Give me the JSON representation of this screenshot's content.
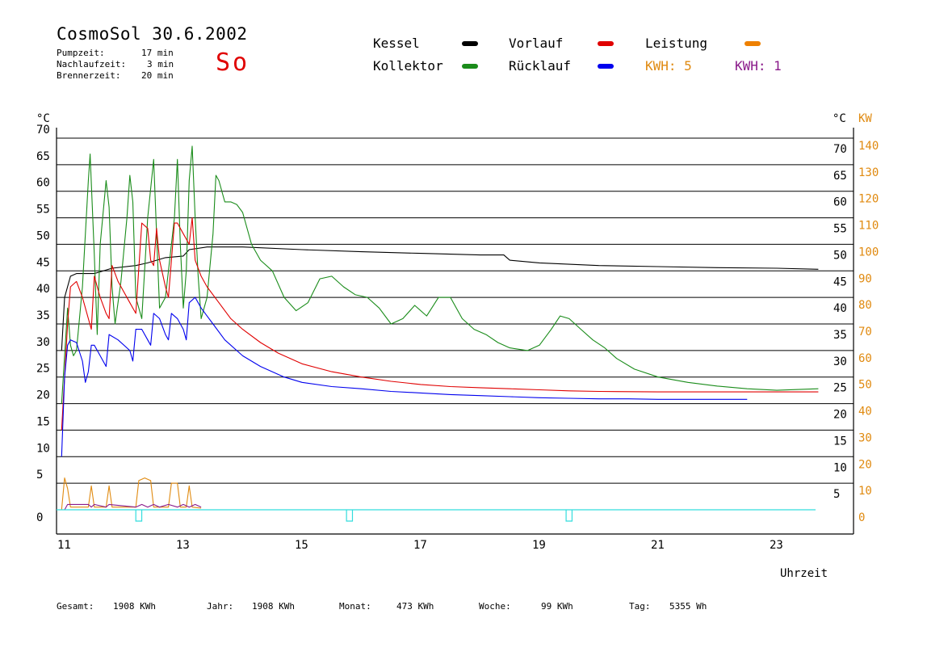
{
  "header": {
    "title": "CosmoSol 30.6.2002",
    "stats": [
      {
        "label": "Pumpzeit:",
        "value": "17 min"
      },
      {
        "label": "Nachlaufzeit:",
        "value": "3 min"
      },
      {
        "label": "Brennerzeit:",
        "value": "20 min"
      }
    ],
    "day": "So"
  },
  "legend": {
    "kessel": {
      "label": "Kessel",
      "color": "#000000"
    },
    "kollektor": {
      "label": "Kollektor",
      "color": "#1a8c1a"
    },
    "vorlauf": {
      "label": "Vorlauf",
      "color": "#e00000"
    },
    "ruecklauf": {
      "label": "Rücklauf",
      "color": "#0000ee"
    },
    "leistung": {
      "label": "Leistung",
      "color": "#ee8000"
    },
    "kwh1": {
      "label": "KWH: 5",
      "color": "#e08a10"
    },
    "kwh2": {
      "label": "KWH: 1",
      "color": "#8a1a8a"
    }
  },
  "footer": {
    "gesamt_label": "Gesamt:",
    "gesamt_value": "1908 KWh",
    "jahr_label": "Jahr:",
    "jahr_value": "1908 KWh",
    "monat_label": "Monat:",
    "monat_value": "473 KWh",
    "woche_label": "Woche:",
    "woche_value": "99 KWh",
    "tag_label": "Tag:",
    "tag_value": "5355 Wh"
  },
  "chart_data": {
    "type": "line",
    "xlabel": "Uhrzeit",
    "ylabel_left": "°C",
    "ylabel_right": "°C",
    "ylabel_right2": "KW",
    "xlim": [
      10.9,
      23.7
    ],
    "ylim": [
      0,
      70
    ],
    "x_ticks": [
      11,
      13,
      15,
      17,
      19,
      21,
      23
    ],
    "y_ticks_left": [
      0,
      5,
      10,
      15,
      20,
      25,
      30,
      35,
      40,
      45,
      50,
      55,
      60,
      65,
      70
    ],
    "y_ticks_right": [
      5,
      10,
      15,
      20,
      25,
      30,
      35,
      40,
      45,
      50,
      55,
      60,
      65,
      70
    ],
    "y_ticks_kw": [
      0,
      10,
      20,
      30,
      40,
      50,
      60,
      70,
      80,
      90,
      100,
      110,
      120,
      130,
      140
    ],
    "grid": true,
    "series": [
      {
        "name": "Kessel",
        "color": "#000000",
        "points": [
          [
            10.95,
            30
          ],
          [
            11.0,
            40
          ],
          [
            11.1,
            44
          ],
          [
            11.2,
            44.5
          ],
          [
            11.5,
            44.5
          ],
          [
            11.8,
            45.5
          ],
          [
            12.2,
            46
          ],
          [
            12.4,
            46.5
          ],
          [
            12.7,
            47.5
          ],
          [
            13.0,
            47.8
          ],
          [
            13.1,
            49
          ],
          [
            13.4,
            49.5
          ],
          [
            14.0,
            49.5
          ],
          [
            15.0,
            49
          ],
          [
            16.0,
            48.6
          ],
          [
            17.0,
            48.3
          ],
          [
            18.0,
            48
          ],
          [
            18.4,
            48
          ],
          [
            18.5,
            47
          ],
          [
            19.0,
            46.5
          ],
          [
            20.0,
            46
          ],
          [
            21.0,
            45.8
          ],
          [
            22.0,
            45.6
          ],
          [
            23.0,
            45.5
          ],
          [
            23.7,
            45.3
          ]
        ]
      },
      {
        "name": "Kollektor",
        "color": "#1a8c1a",
        "points": [
          [
            10.95,
            20
          ],
          [
            11.05,
            38
          ],
          [
            11.1,
            31
          ],
          [
            11.15,
            29
          ],
          [
            11.2,
            30
          ],
          [
            11.3,
            42
          ],
          [
            11.4,
            62
          ],
          [
            11.43,
            67
          ],
          [
            11.5,
            48
          ],
          [
            11.55,
            33
          ],
          [
            11.6,
            50
          ],
          [
            11.7,
            62
          ],
          [
            11.75,
            57
          ],
          [
            11.8,
            42
          ],
          [
            11.85,
            35
          ],
          [
            11.95,
            43
          ],
          [
            12.05,
            55
          ],
          [
            12.1,
            63
          ],
          [
            12.15,
            58
          ],
          [
            12.2,
            40
          ],
          [
            12.3,
            36
          ],
          [
            12.4,
            55
          ],
          [
            12.5,
            66
          ],
          [
            12.55,
            52
          ],
          [
            12.6,
            38
          ],
          [
            12.7,
            40
          ],
          [
            12.85,
            55
          ],
          [
            12.9,
            66
          ],
          [
            12.95,
            50
          ],
          [
            13.0,
            38
          ],
          [
            13.05,
            45
          ],
          [
            13.1,
            62
          ],
          [
            13.15,
            68.5
          ],
          [
            13.2,
            55
          ],
          [
            13.25,
            44
          ],
          [
            13.3,
            36
          ],
          [
            13.4,
            40
          ],
          [
            13.5,
            52
          ],
          [
            13.55,
            63
          ],
          [
            13.6,
            62
          ],
          [
            13.7,
            58
          ],
          [
            13.8,
            58
          ],
          [
            13.9,
            57.5
          ],
          [
            14.0,
            56
          ],
          [
            14.15,
            50
          ],
          [
            14.3,
            47
          ],
          [
            14.5,
            45
          ],
          [
            14.7,
            40
          ],
          [
            14.9,
            37.5
          ],
          [
            15.1,
            39
          ],
          [
            15.3,
            43.5
          ],
          [
            15.5,
            44
          ],
          [
            15.7,
            42
          ],
          [
            15.9,
            40.5
          ],
          [
            16.1,
            40
          ],
          [
            16.3,
            38
          ],
          [
            16.5,
            35
          ],
          [
            16.7,
            36
          ],
          [
            16.9,
            38.5
          ],
          [
            17.1,
            36.5
          ],
          [
            17.3,
            40
          ],
          [
            17.5,
            40
          ],
          [
            17.7,
            36
          ],
          [
            17.9,
            34
          ],
          [
            18.1,
            33
          ],
          [
            18.3,
            31.5
          ],
          [
            18.5,
            30.5
          ],
          [
            18.8,
            30
          ],
          [
            19.0,
            31
          ],
          [
            19.2,
            34
          ],
          [
            19.35,
            36.5
          ],
          [
            19.5,
            36
          ],
          [
            19.7,
            34
          ],
          [
            19.9,
            32
          ],
          [
            20.1,
            30.5
          ],
          [
            20.3,
            28.5
          ],
          [
            20.6,
            26.5
          ],
          [
            21.0,
            25
          ],
          [
            21.5,
            24
          ],
          [
            22.0,
            23.3
          ],
          [
            22.5,
            22.8
          ],
          [
            23.0,
            22.5
          ],
          [
            23.7,
            22.8
          ]
        ]
      },
      {
        "name": "Vorlauf",
        "color": "#e00000",
        "points": [
          [
            10.95,
            15
          ],
          [
            11.05,
            35
          ],
          [
            11.1,
            42
          ],
          [
            11.2,
            43
          ],
          [
            11.3,
            40
          ],
          [
            11.4,
            36
          ],
          [
            11.45,
            34
          ],
          [
            11.5,
            44
          ],
          [
            11.6,
            40
          ],
          [
            11.7,
            37
          ],
          [
            11.75,
            36
          ],
          [
            11.8,
            46
          ],
          [
            11.9,
            43
          ],
          [
            12.1,
            39
          ],
          [
            12.2,
            37
          ],
          [
            12.3,
            54
          ],
          [
            12.4,
            53
          ],
          [
            12.45,
            47
          ],
          [
            12.5,
            46
          ],
          [
            12.55,
            53
          ],
          [
            12.6,
            47
          ],
          [
            12.7,
            42
          ],
          [
            12.75,
            40
          ],
          [
            12.85,
            54
          ],
          [
            12.9,
            54
          ],
          [
            13.0,
            52
          ],
          [
            13.1,
            50
          ],
          [
            13.15,
            55
          ],
          [
            13.2,
            47
          ],
          [
            13.3,
            44
          ],
          [
            13.4,
            42
          ],
          [
            13.6,
            39
          ],
          [
            13.8,
            36
          ],
          [
            14.0,
            34
          ],
          [
            14.3,
            31.5
          ],
          [
            14.6,
            29.5
          ],
          [
            15.0,
            27.5
          ],
          [
            15.5,
            26
          ],
          [
            16.0,
            25
          ],
          [
            16.5,
            24.2
          ],
          [
            17.0,
            23.6
          ],
          [
            17.5,
            23.2
          ],
          [
            18.0,
            23
          ],
          [
            18.5,
            22.8
          ],
          [
            19.0,
            22.6
          ],
          [
            19.5,
            22.4
          ],
          [
            20.0,
            22.3
          ],
          [
            21.0,
            22.2
          ],
          [
            22.0,
            22.2
          ],
          [
            23.0,
            22.2
          ],
          [
            23.7,
            22.2
          ]
        ]
      },
      {
        "name": "Rücklauf",
        "color": "#0000ee",
        "points": [
          [
            10.95,
            10
          ],
          [
            11.0,
            25
          ],
          [
            11.05,
            31
          ],
          [
            11.1,
            32
          ],
          [
            11.2,
            31.5
          ],
          [
            11.3,
            28
          ],
          [
            11.35,
            24
          ],
          [
            11.4,
            26
          ],
          [
            11.45,
            31
          ],
          [
            11.5,
            31
          ],
          [
            11.6,
            29
          ],
          [
            11.7,
            27
          ],
          [
            11.75,
            33
          ],
          [
            11.9,
            32
          ],
          [
            12.1,
            30
          ],
          [
            12.15,
            28
          ],
          [
            12.2,
            34
          ],
          [
            12.3,
            34
          ],
          [
            12.4,
            32
          ],
          [
            12.45,
            31
          ],
          [
            12.5,
            37
          ],
          [
            12.6,
            36
          ],
          [
            12.7,
            33
          ],
          [
            12.75,
            32
          ],
          [
            12.8,
            37
          ],
          [
            12.9,
            36
          ],
          [
            13.0,
            34
          ],
          [
            13.05,
            32
          ],
          [
            13.1,
            39
          ],
          [
            13.2,
            40
          ],
          [
            13.3,
            38
          ],
          [
            13.5,
            35
          ],
          [
            13.7,
            32
          ],
          [
            14.0,
            29
          ],
          [
            14.3,
            27
          ],
          [
            14.7,
            25
          ],
          [
            15.0,
            24
          ],
          [
            15.5,
            23.2
          ],
          [
            16.0,
            22.8
          ],
          [
            16.5,
            22.3
          ],
          [
            17.0,
            22
          ],
          [
            17.5,
            21.7
          ],
          [
            18.0,
            21.5
          ],
          [
            18.5,
            21.3
          ],
          [
            19.0,
            21.1
          ],
          [
            19.5,
            21
          ],
          [
            20.0,
            20.9
          ],
          [
            20.5,
            20.9
          ],
          [
            21.0,
            20.8
          ],
          [
            22.0,
            20.8
          ],
          [
            22.5,
            20.8
          ]
        ]
      }
    ],
    "power_series": [
      {
        "name": "Leistung",
        "color": "#e08a10",
        "points": [
          [
            10.95,
            0
          ],
          [
            11.0,
            6
          ],
          [
            11.05,
            4
          ],
          [
            11.1,
            0.5
          ],
          [
            11.4,
            0.5
          ],
          [
            11.45,
            4.5
          ],
          [
            11.5,
            0.5
          ],
          [
            11.7,
            0.5
          ],
          [
            11.75,
            4.5
          ],
          [
            11.8,
            0.5
          ],
          [
            12.2,
            0.5
          ],
          [
            12.25,
            5.5
          ],
          [
            12.35,
            6
          ],
          [
            12.45,
            5.5
          ],
          [
            12.5,
            0.5
          ],
          [
            12.6,
            0.5
          ],
          [
            12.75,
            0.5
          ],
          [
            12.8,
            5
          ],
          [
            12.9,
            5
          ],
          [
            12.95,
            0.5
          ],
          [
            13.05,
            0.5
          ],
          [
            13.1,
            4.5
          ],
          [
            13.15,
            0.5
          ],
          [
            13.3,
            0.3
          ]
        ]
      },
      {
        "name": "KWH 1",
        "color": "#8a1a8a",
        "points": [
          [
            11.0,
            0
          ],
          [
            11.05,
            1
          ],
          [
            11.4,
            1
          ],
          [
            11.45,
            0.5
          ],
          [
            11.5,
            1
          ],
          [
            11.7,
            0.5
          ],
          [
            11.75,
            1
          ],
          [
            12.2,
            0.5
          ],
          [
            12.3,
            1
          ],
          [
            12.4,
            0.5
          ],
          [
            12.5,
            1
          ],
          [
            12.6,
            0.5
          ],
          [
            12.75,
            1
          ],
          [
            12.9,
            0.5
          ],
          [
            13.0,
            1
          ],
          [
            13.1,
            0.5
          ],
          [
            13.2,
            1
          ],
          [
            13.3,
            0.5
          ]
        ]
      }
    ],
    "pump_line": {
      "name": "Pumpe",
      "color": "#33dddd",
      "value": 0,
      "pulses": [
        [
          12.2,
          12.3
        ],
        [
          15.75,
          15.85
        ],
        [
          19.45,
          19.55
        ]
      ]
    }
  }
}
